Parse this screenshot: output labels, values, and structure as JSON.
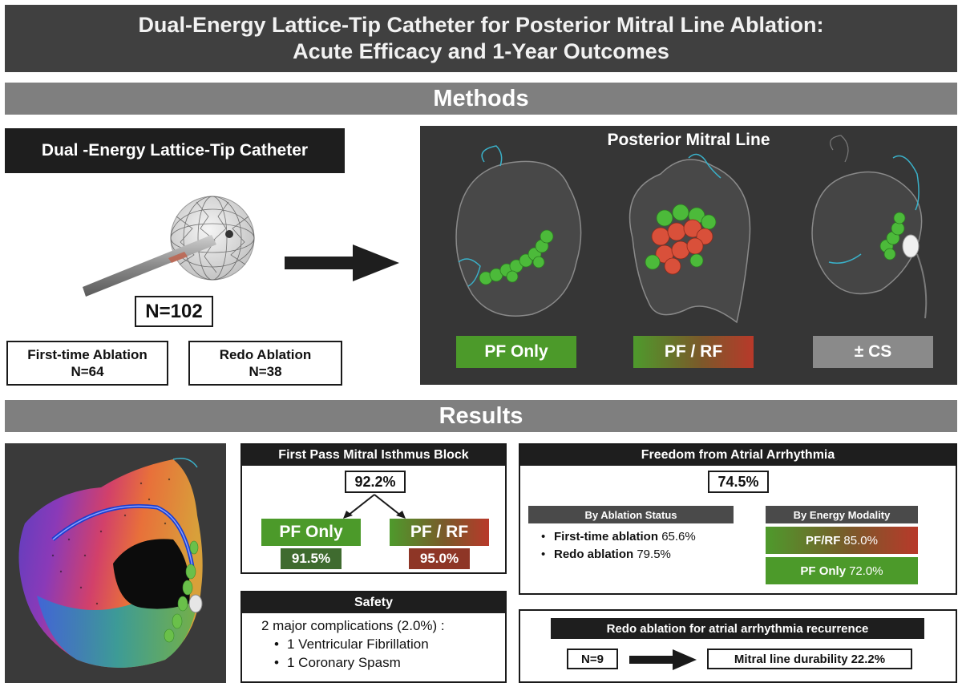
{
  "header": {
    "title_line1": "Dual-Energy Lattice-Tip Catheter for Posterior Mitral Line Ablation:",
    "title_line2": "Acute Efficacy and 1-Year Outcomes"
  },
  "methods": {
    "section_label": "Methods",
    "catheter_label": "Dual -Energy Lattice-Tip Catheter",
    "n_total": "N=102",
    "groups": [
      {
        "label": "First-time Ablation",
        "n": "N=64"
      },
      {
        "label": "Redo Ablation",
        "n": "N=38"
      }
    ],
    "mitral_panel": {
      "title": "Posterior Mitral Line",
      "tags": [
        "PF Only",
        "PF / RF",
        "± CS"
      ]
    }
  },
  "results": {
    "section_label": "Results",
    "first_pass": {
      "title": "First Pass Mitral Isthmus Block",
      "overall": "92.2%",
      "arms": [
        {
          "label": "PF Only",
          "value": "91.5%"
        },
        {
          "label": "PF / RF",
          "value": "95.0%"
        }
      ]
    },
    "safety": {
      "title": "Safety",
      "summary": "2 major complications (2.0%) :",
      "items": [
        "1 Ventricular Fibrillation",
        "1 Coronary Spasm"
      ]
    },
    "freedom": {
      "title": "Freedom from Atrial Arrhythmia",
      "overall": "74.5%",
      "by_status_label": "By Ablation Status",
      "by_status": [
        {
          "label": "First-time ablation",
          "value": "65.6%"
        },
        {
          "label": "Redo ablation",
          "value": "79.5%"
        }
      ],
      "by_energy_label": "By Energy Modality",
      "by_energy": [
        {
          "label": "PF/RF",
          "value": "85.0%"
        },
        {
          "label": "PF Only",
          "value": "72.0%"
        }
      ]
    },
    "redo": {
      "title": "Redo ablation for atrial arrhythmia recurrence",
      "n": "N=9",
      "durability_label": "Mitral line durability",
      "durability_value": "22.2%"
    }
  },
  "colors": {
    "pf_green": "#4c9a2a",
    "rf_red": "#b8392a",
    "header_grey": "#404040",
    "section_grey": "#7f7f7f",
    "panel_dark": "#363636",
    "outline_cyan": "#3ab0c8"
  }
}
